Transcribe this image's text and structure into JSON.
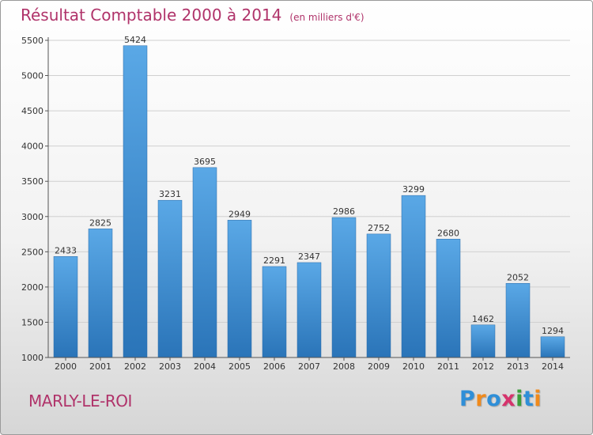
{
  "title": "Résultat Comptable 2000 à 2014",
  "unit": "(en milliers d'€)",
  "commune": "MARLY-LE-ROI",
  "logo": {
    "letters": [
      {
        "char": "P",
        "color": "#2f8fd8"
      },
      {
        "char": "r",
        "color": "#f08a1c"
      },
      {
        "char": "o",
        "color": "#2f8fd8"
      },
      {
        "char": "x",
        "color": "#d6336c"
      },
      {
        "char": "i",
        "color": "#3a9e3a"
      },
      {
        "char": "t",
        "color": "#2f8fd8"
      },
      {
        "char": "i",
        "color": "#f08a1c"
      }
    ]
  },
  "colors": {
    "title": "#b0336a",
    "bar_top": "#5aa8e6",
    "bar_bottom": "#2a74b8",
    "axis": "#555555",
    "grid": "#d0d0d0"
  },
  "chart_data": {
    "type": "bar",
    "title": "Résultat Comptable 2000 à 2014",
    "subtitle": "(en milliers d'€)",
    "xlabel": "",
    "ylabel": "",
    "categories": [
      "2000",
      "2001",
      "2002",
      "2003",
      "2004",
      "2005",
      "2006",
      "2007",
      "2008",
      "2009",
      "2010",
      "2011",
      "2012",
      "2013",
      "2014"
    ],
    "values": [
      2433,
      2825,
      5424,
      3231,
      3695,
      2949,
      2291,
      2347,
      2986,
      2752,
      3299,
      2680,
      1462,
      2052,
      1294
    ],
    "ylim": [
      1000,
      5500
    ],
    "yticks": [
      1000,
      1500,
      2000,
      2500,
      3000,
      3500,
      4000,
      4500,
      5000,
      5500
    ],
    "grid": true,
    "data_labels": true
  }
}
